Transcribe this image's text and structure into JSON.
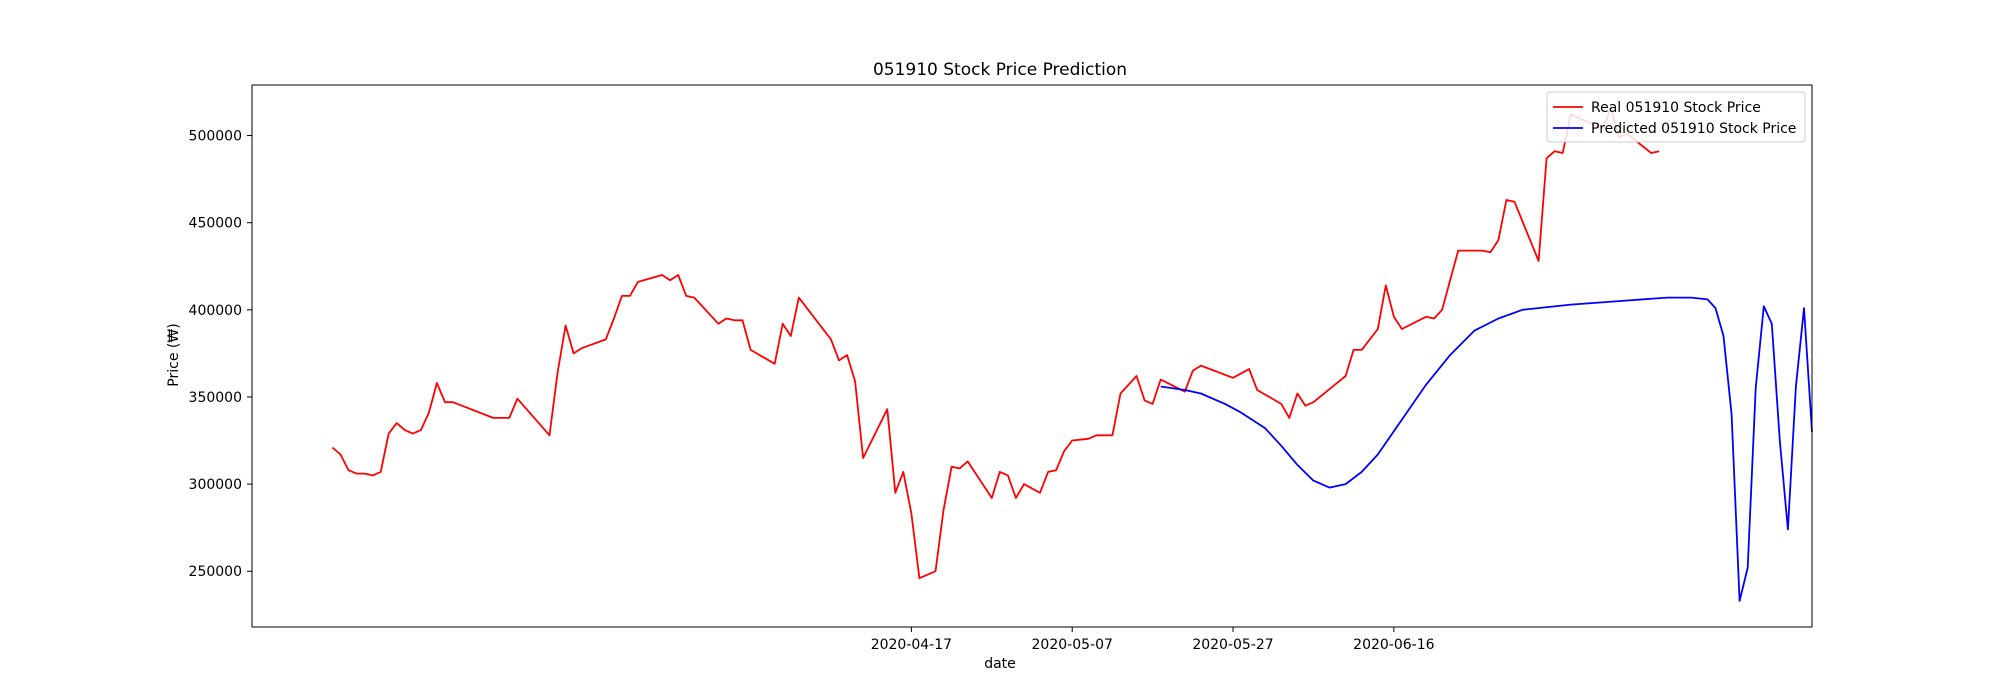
{
  "chart_data": {
    "type": "line",
    "title": "051910 Stock Price Prediction",
    "xlabel": "date",
    "ylabel": "Price (₩)",
    "x_tick_labels": [
      "2020-04-17",
      "2020-05-07",
      "2020-05-27",
      "2020-06-16"
    ],
    "x_tick_dates": [
      "2020-04-17",
      "2020-05-07",
      "2020-05-27",
      "2020-06-16"
    ],
    "y_ticks": [
      250000,
      300000,
      350000,
      400000,
      450000,
      500000
    ],
    "y_tick_labels": [
      "250000",
      "300000",
      "350000",
      "400000",
      "450000",
      "500000"
    ],
    "xlim": [
      "2020-01-26",
      "2020-08-07"
    ],
    "ylim": [
      218000,
      529000
    ],
    "grid": false,
    "legend_position": "top-right",
    "series": [
      {
        "name": "Real 051910 Stock Price",
        "color": "#ff0000",
        "points": [
          [
            "2020-02-05",
            321000
          ],
          [
            "2020-02-06",
            317000
          ],
          [
            "2020-02-07",
            308000
          ],
          [
            "2020-02-08",
            306000
          ],
          [
            "2020-02-09",
            306000
          ],
          [
            "2020-02-10",
            305000
          ],
          [
            "2020-02-11",
            307000
          ],
          [
            "2020-02-12",
            329000
          ],
          [
            "2020-02-13",
            335000
          ],
          [
            "2020-02-14",
            331000
          ],
          [
            "2020-02-15",
            329000
          ],
          [
            "2020-02-16",
            331000
          ],
          [
            "2020-02-17",
            341000
          ],
          [
            "2020-02-18",
            358000
          ],
          [
            "2020-02-19",
            347000
          ],
          [
            "2020-02-20",
            347000
          ],
          [
            "2020-02-25",
            338000
          ],
          [
            "2020-02-27",
            338000
          ],
          [
            "2020-02-28",
            349000
          ],
          [
            "2020-03-03",
            328000
          ],
          [
            "2020-03-04",
            364000
          ],
          [
            "2020-03-05",
            391000
          ],
          [
            "2020-03-06",
            375000
          ],
          [
            "2020-03-07",
            378000
          ],
          [
            "2020-03-10",
            383000
          ],
          [
            "2020-03-11",
            395000
          ],
          [
            "2020-03-12",
            408000
          ],
          [
            "2020-03-13",
            408000
          ],
          [
            "2020-03-14",
            416000
          ],
          [
            "2020-03-17",
            420000
          ],
          [
            "2020-03-18",
            417000
          ],
          [
            "2020-03-19",
            420000
          ],
          [
            "2020-03-20",
            408000
          ],
          [
            "2020-03-21",
            407000
          ],
          [
            "2020-03-24",
            392000
          ],
          [
            "2020-03-25",
            395000
          ],
          [
            "2020-03-26",
            394000
          ],
          [
            "2020-03-27",
            394000
          ],
          [
            "2020-03-28",
            377000
          ],
          [
            "2020-03-31",
            369000
          ],
          [
            "2020-04-01",
            392000
          ],
          [
            "2020-04-02",
            385000
          ],
          [
            "2020-04-03",
            407000
          ],
          [
            "2020-04-07",
            383000
          ],
          [
            "2020-04-08",
            371000
          ],
          [
            "2020-04-09",
            374000
          ],
          [
            "2020-04-10",
            359000
          ],
          [
            "2020-04-11",
            315000
          ],
          [
            "2020-04-14",
            343000
          ],
          [
            "2020-04-15",
            295000
          ],
          [
            "2020-04-16",
            307000
          ],
          [
            "2020-04-17",
            283000
          ],
          [
            "2020-04-18",
            246000
          ],
          [
            "2020-04-20",
            250000
          ],
          [
            "2020-04-21",
            285000
          ],
          [
            "2020-04-22",
            310000
          ],
          [
            "2020-04-23",
            309000
          ],
          [
            "2020-04-24",
            313000
          ],
          [
            "2020-04-27",
            292000
          ],
          [
            "2020-04-28",
            307000
          ],
          [
            "2020-04-29",
            305000
          ],
          [
            "2020-04-30",
            292000
          ],
          [
            "2020-05-01",
            300000
          ],
          [
            "2020-05-03",
            295000
          ],
          [
            "2020-05-04",
            307000
          ],
          [
            "2020-05-05",
            308000
          ],
          [
            "2020-05-06",
            319000
          ],
          [
            "2020-05-07",
            325000
          ],
          [
            "2020-05-09",
            326000
          ],
          [
            "2020-05-10",
            328000
          ],
          [
            "2020-05-12",
            328000
          ],
          [
            "2020-05-13",
            352000
          ],
          [
            "2020-05-15",
            362000
          ],
          [
            "2020-05-16",
            348000
          ],
          [
            "2020-05-17",
            346000
          ],
          [
            "2020-05-18",
            360000
          ],
          [
            "2020-05-21",
            353000
          ],
          [
            "2020-05-22",
            365000
          ],
          [
            "2020-05-23",
            368000
          ],
          [
            "2020-05-27",
            361000
          ],
          [
            "2020-05-29",
            366000
          ],
          [
            "2020-05-30",
            354000
          ],
          [
            "2020-06-02",
            346000
          ],
          [
            "2020-06-03",
            338000
          ],
          [
            "2020-06-04",
            352000
          ],
          [
            "2020-06-05",
            345000
          ],
          [
            "2020-06-06",
            347000
          ],
          [
            "2020-06-10",
            362000
          ],
          [
            "2020-06-11",
            377000
          ],
          [
            "2020-06-12",
            377000
          ],
          [
            "2020-06-14",
            389000
          ],
          [
            "2020-06-15",
            414000
          ],
          [
            "2020-06-16",
            396000
          ],
          [
            "2020-06-17",
            389000
          ],
          [
            "2020-06-20",
            396000
          ],
          [
            "2020-06-21",
            395000
          ],
          [
            "2020-06-22",
            400000
          ],
          [
            "2020-06-24",
            434000
          ],
          [
            "2020-06-27",
            434000
          ],
          [
            "2020-06-28",
            433000
          ],
          [
            "2020-06-29",
            440000
          ],
          [
            "2020-06-30",
            463000
          ],
          [
            "2020-07-01",
            462000
          ],
          [
            "2020-07-04",
            428000
          ],
          [
            "2020-07-05",
            487000
          ],
          [
            "2020-07-06",
            491000
          ],
          [
            "2020-07-07",
            490000
          ],
          [
            "2020-07-08",
            512000
          ],
          [
            "2020-07-12",
            504000
          ],
          [
            "2020-07-13",
            516000
          ],
          [
            "2020-07-14",
            499000
          ],
          [
            "2020-07-15",
            501000
          ],
          [
            "2020-07-18",
            490000
          ],
          [
            "2020-07-19",
            491000
          ]
        ]
      },
      {
        "name": "Predicted 051910 Stock Price",
        "color": "#0000ff",
        "points": [
          [
            "2020-05-18",
            356000
          ],
          [
            "2020-05-21",
            354000
          ],
          [
            "2020-05-23",
            352000
          ],
          [
            "2020-05-26",
            346000
          ],
          [
            "2020-05-28",
            341000
          ],
          [
            "2020-05-31",
            332000
          ],
          [
            "2020-06-02",
            322000
          ],
          [
            "2020-06-04",
            311000
          ],
          [
            "2020-06-06",
            302000
          ],
          [
            "2020-06-08",
            298000
          ],
          [
            "2020-06-10",
            300000
          ],
          [
            "2020-06-12",
            307000
          ],
          [
            "2020-06-14",
            317000
          ],
          [
            "2020-06-17",
            337000
          ],
          [
            "2020-06-20",
            357000
          ],
          [
            "2020-06-23",
            374000
          ],
          [
            "2020-06-26",
            388000
          ],
          [
            "2020-06-29",
            395000
          ],
          [
            "2020-07-02",
            400000
          ],
          [
            "2020-07-08",
            403000
          ],
          [
            "2020-07-14",
            405000
          ],
          [
            "2020-07-20",
            407000
          ],
          [
            "2020-07-23",
            407000
          ],
          [
            "2020-07-25",
            406000
          ],
          [
            "2020-07-26",
            401000
          ],
          [
            "2020-07-27",
            385000
          ],
          [
            "2020-07-28",
            340000
          ],
          [
            "2020-07-29",
            233000
          ],
          [
            "2020-07-30",
            252000
          ],
          [
            "2020-07-31",
            355000
          ],
          [
            "2020-08-01",
            402000
          ],
          [
            "2020-08-02",
            392000
          ],
          [
            "2020-08-03",
            325000
          ],
          [
            "2020-08-04",
            274000
          ],
          [
            "2020-08-05",
            356000
          ],
          [
            "2020-08-06",
            401000
          ],
          [
            "2020-08-07",
            330000
          ]
        ]
      }
    ]
  }
}
